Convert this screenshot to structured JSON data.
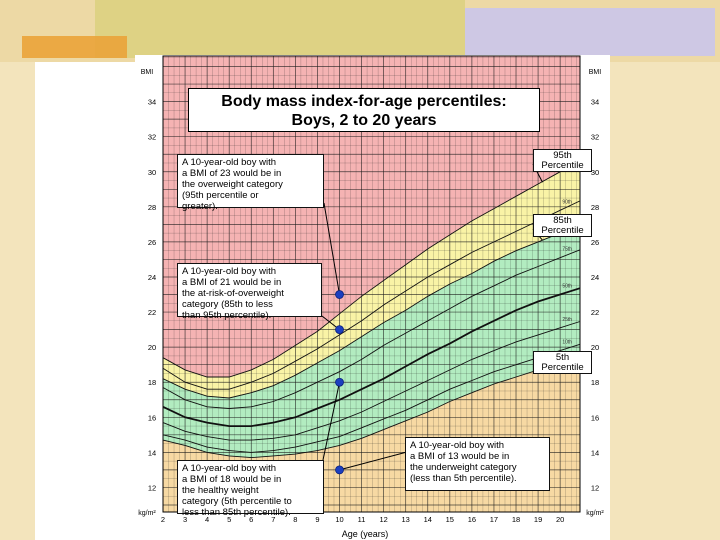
{
  "colors": {
    "overweight": "#f5b3b3",
    "at_risk": "#f9f3a6",
    "healthy": "#b2ecc0",
    "underweight": "#f7d9a3",
    "grid": "#1a1a1a",
    "marker": "#1c3fbf"
  },
  "chart_data": {
    "type": "line",
    "title": "Body mass index-for-age percentiles:",
    "subtitle": "Boys, 2 to 20 years",
    "xlabel": "Age (years)",
    "ylabel": "BMI",
    "unit_label": "kg/m²",
    "xlim": [
      2,
      20.9
    ],
    "ylim": [
      10.6,
      36.6
    ],
    "x_ticks": [
      "2",
      "3",
      "4",
      "5",
      "6",
      "7",
      "8",
      "9",
      "10",
      "11",
      "12",
      "13",
      "14",
      "15",
      "16",
      "17",
      "18",
      "19",
      "20"
    ],
    "y_ticks": [
      "12",
      "14",
      "16",
      "18",
      "20",
      "22",
      "24",
      "26",
      "28",
      "30",
      "32",
      "34"
    ],
    "x": [
      2,
      3,
      4,
      5,
      6,
      7,
      8,
      9,
      10,
      11,
      12,
      13,
      14,
      15,
      16,
      17,
      18,
      19,
      20
    ],
    "series": [
      {
        "name": "5th",
        "values": [
          14.7,
          14.4,
          14.0,
          13.8,
          13.7,
          13.8,
          13.9,
          14.1,
          14.4,
          14.8,
          15.3,
          15.8,
          16.3,
          16.9,
          17.4,
          17.9,
          18.3,
          18.7,
          19.1
        ]
      },
      {
        "name": "10th",
        "values": [
          15.0,
          14.7,
          14.3,
          14.1,
          14.0,
          14.1,
          14.3,
          14.6,
          14.9,
          15.4,
          15.9,
          16.4,
          17.0,
          17.6,
          18.1,
          18.6,
          19.0,
          19.4,
          19.8
        ]
      },
      {
        "name": "25th",
        "values": [
          15.7,
          15.2,
          14.9,
          14.7,
          14.7,
          14.8,
          15.0,
          15.4,
          15.8,
          16.3,
          16.9,
          17.5,
          18.1,
          18.7,
          19.3,
          19.8,
          20.3,
          20.7,
          21.1
        ]
      },
      {
        "name": "50th",
        "values": [
          16.6,
          16.0,
          15.7,
          15.5,
          15.5,
          15.7,
          16.0,
          16.5,
          17.0,
          17.6,
          18.2,
          18.9,
          19.6,
          20.2,
          20.9,
          21.5,
          22.1,
          22.6,
          23.0
        ]
      },
      {
        "name": "75th",
        "values": [
          17.7,
          17.0,
          16.6,
          16.5,
          16.6,
          16.9,
          17.4,
          18.0,
          18.6,
          19.3,
          20.1,
          20.8,
          21.5,
          22.2,
          22.9,
          23.5,
          24.1,
          24.6,
          25.1
        ]
      },
      {
        "name": "85th",
        "values": [
          18.2,
          17.6,
          17.2,
          17.1,
          17.4,
          17.8,
          18.4,
          19.1,
          19.8,
          20.6,
          21.4,
          22.1,
          22.9,
          23.6,
          24.2,
          24.9,
          25.5,
          26.0,
          26.5
        ]
      },
      {
        "name": "90th",
        "values": [
          18.8,
          18.0,
          17.6,
          17.6,
          18.0,
          18.5,
          19.2,
          19.9,
          20.7,
          21.5,
          22.4,
          23.2,
          24.0,
          24.7,
          25.4,
          26.0,
          26.6,
          27.2,
          27.8
        ]
      },
      {
        "name": "95th",
        "values": [
          19.4,
          18.7,
          18.3,
          18.3,
          18.7,
          19.3,
          20.1,
          20.9,
          21.9,
          22.9,
          23.8,
          24.7,
          25.6,
          26.4,
          27.2,
          27.9,
          28.6,
          29.3,
          30.0
        ]
      }
    ],
    "markers": [
      {
        "x": 10,
        "y": 23
      },
      {
        "x": 10,
        "y": 21
      },
      {
        "x": 10,
        "y": 18
      },
      {
        "x": 10,
        "y": 13
      }
    ]
  },
  "annotations": {
    "overweight": [
      "A 10-year-old boy with",
      "a BMI of 23 would be in",
      "the overweight category",
      "(95th percentile or",
      "greater)."
    ],
    "at_risk": [
      "A 10-year-old boy with",
      "a BMI of 21 would be in",
      "the at-risk-of-overweight",
      "category (85th to less",
      "than 95th percentile)."
    ],
    "healthy": [
      "A 10-year-old boy with",
      "a BMI of 18 would be in",
      "the healthy weight",
      "category (5th percentile to",
      "less than 85th percentile)."
    ],
    "underweight": [
      "A 10-year-old boy with",
      "a BMI of 13 would be in",
      "the underweight category",
      "(less than 5th percentile)."
    ]
  },
  "percentile_labels": {
    "p95": [
      "95th",
      "Percentile"
    ],
    "p85": [
      "85th",
      "Percentile"
    ],
    "p5": [
      "5th",
      "Percentile"
    ]
  },
  "curve_labels": {
    "p90": "90th",
    "p75": "75th",
    "p50": "50th",
    "p25": "25th",
    "p10": "10th"
  }
}
